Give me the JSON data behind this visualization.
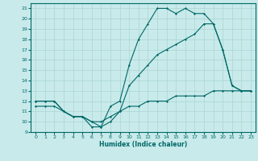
{
  "xlabel": "Humidex (Indice chaleur)",
  "background_color": "#c8eaea",
  "grid_color": "#b0d8d8",
  "line_color": "#006868",
  "xlim": [
    -0.5,
    23.5
  ],
  "ylim": [
    9,
    21.5
  ],
  "xticks": [
    0,
    1,
    2,
    3,
    4,
    5,
    6,
    7,
    8,
    9,
    10,
    11,
    12,
    13,
    14,
    15,
    16,
    17,
    18,
    19,
    20,
    21,
    22,
    23
  ],
  "yticks": [
    9,
    10,
    11,
    12,
    13,
    14,
    15,
    16,
    17,
    18,
    19,
    20,
    21
  ],
  "series1_x": [
    0,
    1,
    2,
    3,
    4,
    5,
    6,
    7,
    8,
    9,
    10,
    11,
    12,
    13,
    14,
    15,
    16,
    17,
    18,
    19,
    20,
    21,
    22,
    23
  ],
  "series1_y": [
    12,
    12,
    12,
    11,
    10.5,
    10.5,
    9.5,
    9.5,
    11.5,
    12,
    15.5,
    18,
    19.5,
    21,
    21,
    20.5,
    21,
    20.5,
    20.5,
    19.5,
    17,
    13.5,
    13,
    13
  ],
  "series2_x": [
    0,
    1,
    2,
    3,
    4,
    5,
    6,
    7,
    8,
    9,
    10,
    11,
    12,
    13,
    14,
    15,
    16,
    17,
    18,
    19,
    20,
    21,
    22,
    23
  ],
  "series2_y": [
    12,
    12,
    12,
    11,
    10.5,
    10.5,
    10,
    9.5,
    10,
    11,
    13.5,
    14.5,
    15.5,
    16.5,
    17,
    17.5,
    18,
    18.5,
    19.5,
    19.5,
    17,
    13.5,
    13,
    13
  ],
  "series3_x": [
    0,
    1,
    2,
    3,
    4,
    5,
    6,
    7,
    8,
    9,
    10,
    11,
    12,
    13,
    14,
    15,
    16,
    17,
    18,
    19,
    20,
    21,
    22,
    23
  ],
  "series3_y": [
    11.5,
    11.5,
    11.5,
    11,
    10.5,
    10.5,
    10,
    10,
    10.5,
    11,
    11.5,
    11.5,
    12,
    12,
    12,
    12.5,
    12.5,
    12.5,
    12.5,
    13,
    13,
    13,
    13,
    13
  ]
}
